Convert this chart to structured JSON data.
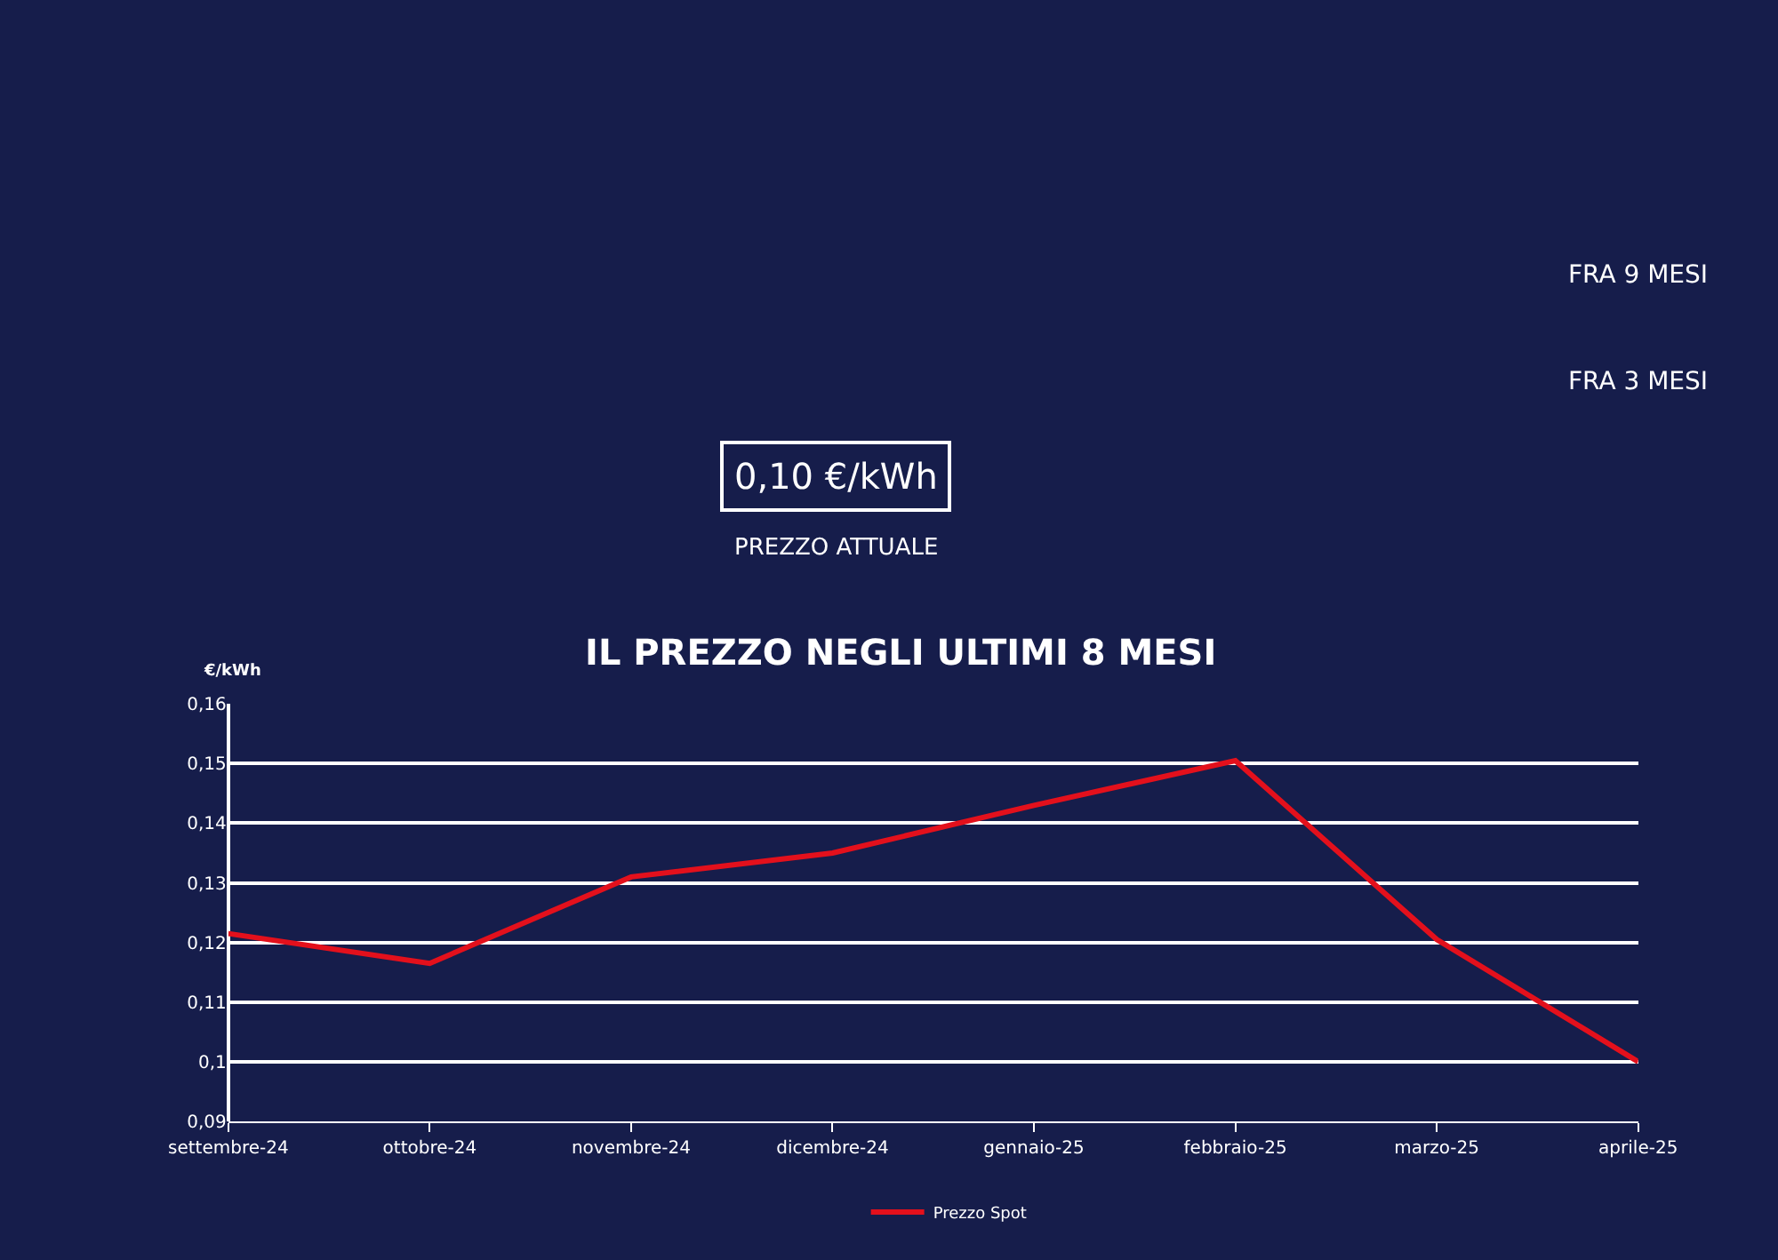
{
  "chart_data": [
    {
      "type": "other",
      "annotations": [
        "FRA 9 MESI",
        "FRA 3 MESI",
        "0,10 €/kWh",
        "PREZZO ATTUALE"
      ]
    },
    {
      "type": "line",
      "title": "IL PREZZO NEGLI ULTIMI 8 MESI",
      "ylabel": "€/kWh",
      "categories": [
        "settembre-24",
        "ottobre-24",
        "novembre-24",
        "dicembre-24",
        "gennaio-25",
        "febbraio-25",
        "marzo-25",
        "aprile-25"
      ],
      "series": [
        {
          "name": "Prezzo Spot",
          "color": "#e3101c",
          "values": [
            0.1215,
            0.1165,
            0.131,
            0.135,
            0.143,
            0.1505,
            0.1205,
            0.1
          ]
        }
      ],
      "ylim": [
        0.09,
        0.16
      ],
      "yticks": [
        {
          "value": 0.09,
          "label": "0,09"
        },
        {
          "value": 0.1,
          "label": "0,1"
        },
        {
          "value": 0.11,
          "label": "0,11"
        },
        {
          "value": 0.12,
          "label": "0,12"
        },
        {
          "value": 0.13,
          "label": "0,13"
        },
        {
          "value": 0.14,
          "label": "0,14"
        },
        {
          "value": 0.15,
          "label": "0,15"
        },
        {
          "value": 0.16,
          "label": "0,16"
        }
      ],
      "grid": "y",
      "legend": "bottom",
      "marker": "none",
      "line_style": "solid"
    }
  ]
}
